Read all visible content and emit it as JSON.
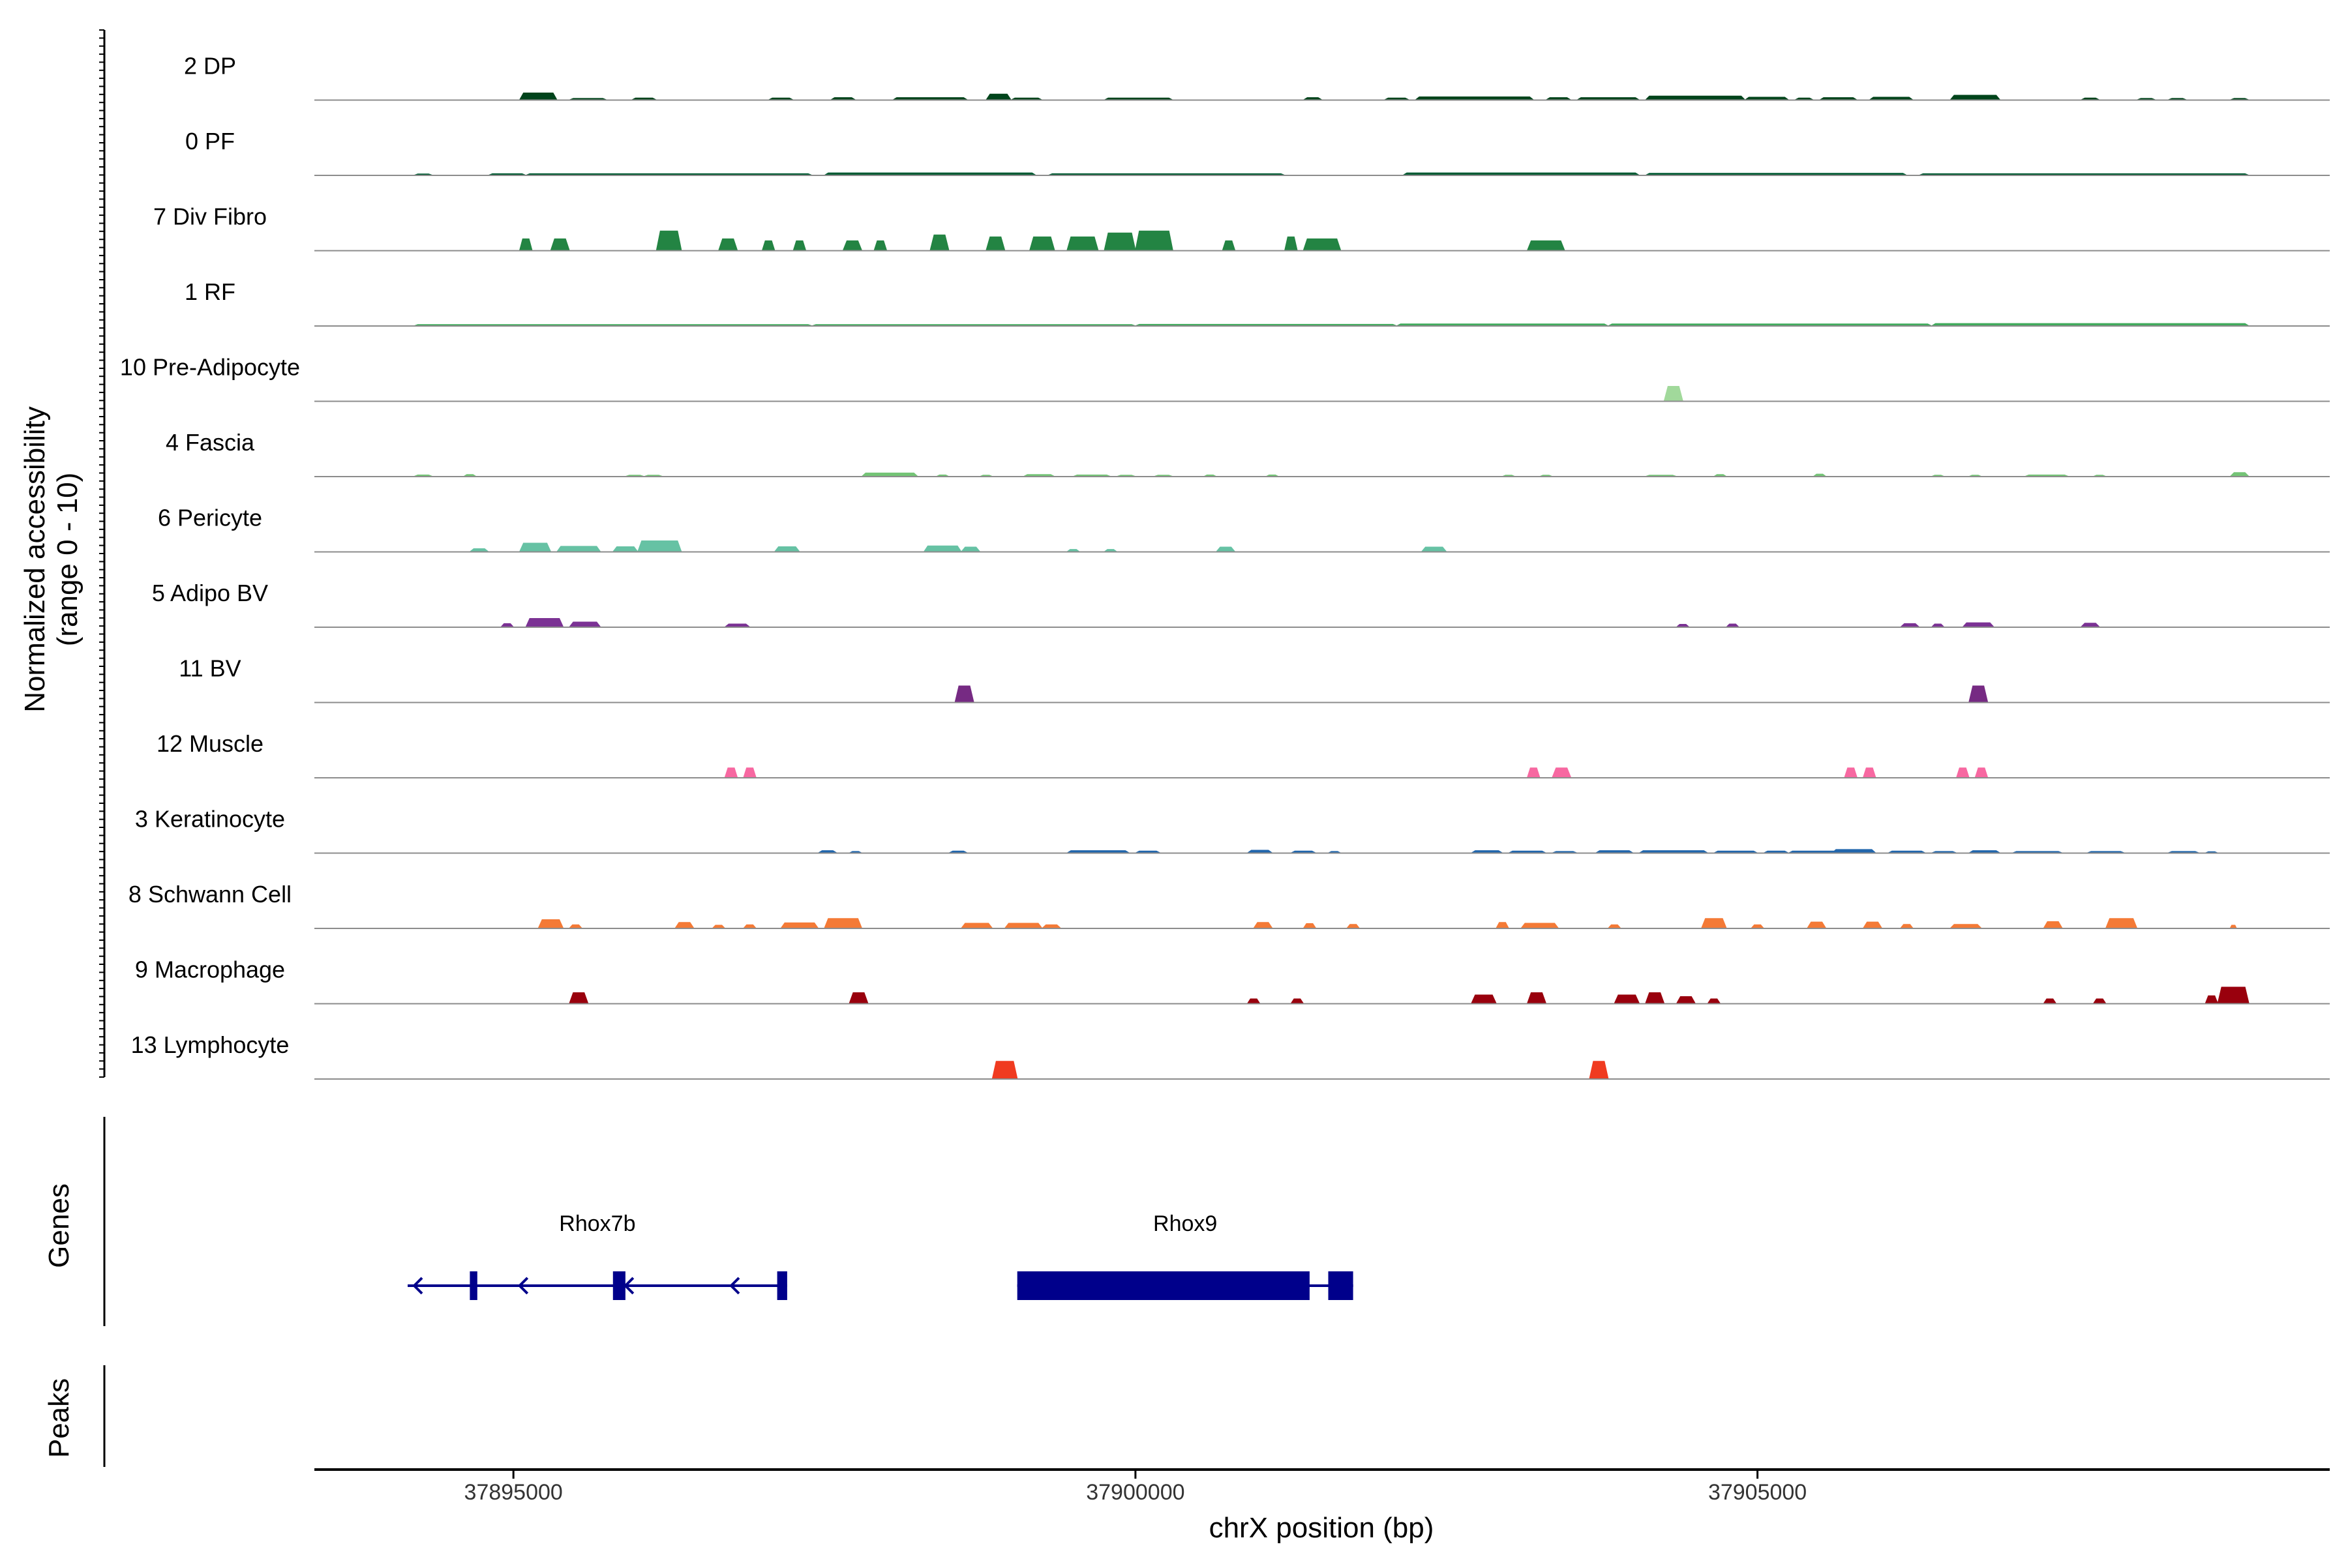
{
  "chart_data": {
    "type": "area",
    "chromosome": "chrX",
    "xlabel": "chrX position (bp)",
    "ylabel_line1": "Normalized accessibility",
    "ylabel_line2": "(range 0 - 10)",
    "xlim": [
      37893400,
      37909600
    ],
    "ylim": [
      0,
      10
    ],
    "x_ticks": [
      37895000,
      37900000,
      37905000
    ],
    "x_tick_labels": [
      "37895000",
      "37900000",
      "37905000"
    ],
    "genes_label": "Genes",
    "peaks_label": "Peaks",
    "series": [
      {
        "name": "2 DP",
        "color": "#00441b",
        "peaks": [
          [
            37895050,
            37895350,
            1.8
          ],
          [
            37895450,
            37895750,
            0.4
          ],
          [
            37895950,
            37896150,
            0.5
          ],
          [
            37897050,
            37897250,
            0.5
          ],
          [
            37897550,
            37897750,
            0.6
          ],
          [
            37898050,
            37898650,
            0.6
          ],
          [
            37898800,
            37899000,
            1.5
          ],
          [
            37899000,
            37899250,
            0.5
          ],
          [
            37899750,
            37900300,
            0.5
          ],
          [
            37901350,
            37901500,
            0.6
          ],
          [
            37902000,
            37902200,
            0.5
          ],
          [
            37902250,
            37903200,
            0.8
          ],
          [
            37903300,
            37903500,
            0.6
          ],
          [
            37903550,
            37904050,
            0.6
          ],
          [
            37904100,
            37904900,
            1.0
          ],
          [
            37904900,
            37905250,
            0.7
          ],
          [
            37905300,
            37905450,
            0.5
          ],
          [
            37905500,
            37905800,
            0.6
          ],
          [
            37905900,
            37906250,
            0.7
          ],
          [
            37906550,
            37906950,
            1.2
          ],
          [
            37907600,
            37907750,
            0.5
          ],
          [
            37908050,
            37908200,
            0.4
          ],
          [
            37908300,
            37908450,
            0.4
          ],
          [
            37908800,
            37908950,
            0.4
          ]
        ]
      },
      {
        "name": "0 PF",
        "color": "#005a32",
        "peaks": [
          [
            37894200,
            37894350,
            0.3
          ],
          [
            37894800,
            37895100,
            0.4
          ],
          [
            37895100,
            37897400,
            0.4
          ],
          [
            37897500,
            37899200,
            0.6
          ],
          [
            37899300,
            37901200,
            0.4
          ],
          [
            37902150,
            37904050,
            0.6
          ],
          [
            37904100,
            37906200,
            0.5
          ],
          [
            37906300,
            37908950,
            0.4
          ]
        ]
      },
      {
        "name": "7 Div Fibro",
        "color": "#238443",
        "peaks": [
          [
            37895050,
            37895150,
            3.0
          ],
          [
            37895300,
            37895450,
            3.0
          ],
          [
            37896150,
            37896350,
            5.0
          ],
          [
            37896650,
            37896800,
            3.0
          ],
          [
            37897000,
            37897100,
            2.5
          ],
          [
            37897250,
            37897350,
            2.5
          ],
          [
            37897650,
            37897800,
            2.5
          ],
          [
            37897900,
            37898000,
            2.5
          ],
          [
            37898350,
            37898500,
            4.0
          ],
          [
            37898800,
            37898950,
            3.5
          ],
          [
            37899150,
            37899350,
            3.5
          ],
          [
            37899450,
            37899700,
            3.5
          ],
          [
            37899750,
            37900000,
            4.5
          ],
          [
            37900000,
            37900300,
            5.0
          ],
          [
            37900700,
            37900800,
            2.5
          ],
          [
            37901200,
            37901300,
            3.5
          ],
          [
            37901350,
            37901650,
            3.0
          ],
          [
            37903150,
            37903450,
            2.5
          ]
        ]
      },
      {
        "name": "1 RF",
        "color": "#41ab5d",
        "peaks": [
          [
            37894200,
            37897400,
            0.3
          ],
          [
            37897400,
            37900000,
            0.3
          ],
          [
            37900000,
            37902100,
            0.4
          ],
          [
            37902100,
            37903800,
            0.5
          ],
          [
            37903800,
            37906400,
            0.5
          ],
          [
            37906400,
            37908950,
            0.6
          ]
        ]
      },
      {
        "name": "10 Pre-Adipocyte",
        "color": "#a1d99b",
        "peaks": [
          [
            37904250,
            37904400,
            3.8
          ]
        ]
      },
      {
        "name": "4 Fascia",
        "color": "#74c476",
        "peaks": [
          [
            37894200,
            37894350,
            0.4
          ],
          [
            37894600,
            37894700,
            0.5
          ],
          [
            37895900,
            37896050,
            0.3
          ],
          [
            37896050,
            37896200,
            0.3
          ],
          [
            37897800,
            37898250,
            0.9
          ],
          [
            37898400,
            37898500,
            0.4
          ],
          [
            37898750,
            37898850,
            0.3
          ],
          [
            37899100,
            37899350,
            0.5
          ],
          [
            37899500,
            37899800,
            0.4
          ],
          [
            37899850,
            37900000,
            0.3
          ],
          [
            37900150,
            37900300,
            0.3
          ],
          [
            37900550,
            37900650,
            0.4
          ],
          [
            37901050,
            37901150,
            0.4
          ],
          [
            37902950,
            37903050,
            0.3
          ],
          [
            37903250,
            37903350,
            0.3
          ],
          [
            37904100,
            37904350,
            0.3
          ],
          [
            37904650,
            37904750,
            0.5
          ],
          [
            37905450,
            37905550,
            0.6
          ],
          [
            37906400,
            37906500,
            0.3
          ],
          [
            37906700,
            37906800,
            0.3
          ],
          [
            37907150,
            37907500,
            0.4
          ],
          [
            37907700,
            37907800,
            0.3
          ],
          [
            37908800,
            37908950,
            1.0
          ]
        ]
      },
      {
        "name": "6 Pericyte",
        "color": "#66c2a4",
        "peaks": [
          [
            37894650,
            37894800,
            0.8
          ],
          [
            37895050,
            37895300,
            2.2
          ],
          [
            37895350,
            37895700,
            1.4
          ],
          [
            37895800,
            37896000,
            1.3
          ],
          [
            37896000,
            37896350,
            2.8
          ],
          [
            37897100,
            37897300,
            1.3
          ],
          [
            37898300,
            37898600,
            1.5
          ],
          [
            37898600,
            37898750,
            1.2
          ],
          [
            37899450,
            37899550,
            0.6
          ],
          [
            37899750,
            37899850,
            0.6
          ],
          [
            37900650,
            37900800,
            1.2
          ],
          [
            37902300,
            37902500,
            1.2
          ]
        ]
      },
      {
        "name": "5 Adipo BV",
        "color": "#7b3294",
        "peaks": [
          [
            37894900,
            37895000,
            0.9
          ],
          [
            37895100,
            37895400,
            2.2
          ],
          [
            37895450,
            37895700,
            1.3
          ],
          [
            37896700,
            37896900,
            0.8
          ],
          [
            37904350,
            37904450,
            0.7
          ],
          [
            37904750,
            37904850,
            0.8
          ],
          [
            37906150,
            37906300,
            0.9
          ],
          [
            37906400,
            37906500,
            0.8
          ],
          [
            37906650,
            37906900,
            1.1
          ],
          [
            37907600,
            37907750,
            1.0
          ]
        ]
      },
      {
        "name": "11 BV",
        "color": "#762a83",
        "peaks": [
          [
            37898550,
            37898700,
            4.2
          ],
          [
            37906700,
            37906850,
            4.2
          ]
        ]
      },
      {
        "name": "12 Muscle",
        "color": "#f768a1",
        "peaks": [
          [
            37896700,
            37896800,
            2.5
          ],
          [
            37896850,
            37896950,
            2.5
          ],
          [
            37903150,
            37903250,
            2.5
          ],
          [
            37903350,
            37903500,
            2.5
          ],
          [
            37905700,
            37905800,
            2.5
          ],
          [
            37905850,
            37905950,
            2.5
          ],
          [
            37906600,
            37906700,
            2.5
          ],
          [
            37906750,
            37906850,
            2.5
          ]
        ]
      },
      {
        "name": "3 Keratinocyte",
        "color": "#2166ac",
        "peaks": [
          [
            37897450,
            37897600,
            0.6
          ],
          [
            37897700,
            37897800,
            0.4
          ],
          [
            37898500,
            37898650,
            0.5
          ],
          [
            37899450,
            37899950,
            0.6
          ],
          [
            37900000,
            37900200,
            0.5
          ],
          [
            37900900,
            37901100,
            0.7
          ],
          [
            37901250,
            37901450,
            0.5
          ],
          [
            37901550,
            37901650,
            0.4
          ],
          [
            37902700,
            37902950,
            0.6
          ],
          [
            37903000,
            37903300,
            0.5
          ],
          [
            37903350,
            37903550,
            0.4
          ],
          [
            37903700,
            37904000,
            0.6
          ],
          [
            37904050,
            37904600,
            0.6
          ],
          [
            37904650,
            37905000,
            0.5
          ],
          [
            37905050,
            37905250,
            0.5
          ],
          [
            37905250,
            37905650,
            0.5
          ],
          [
            37905600,
            37905950,
            0.9
          ],
          [
            37906050,
            37906350,
            0.5
          ],
          [
            37906400,
            37906600,
            0.4
          ],
          [
            37906700,
            37906950,
            0.6
          ],
          [
            37907050,
            37907450,
            0.4
          ],
          [
            37907650,
            37907950,
            0.4
          ],
          [
            37908300,
            37908550,
            0.4
          ],
          [
            37908600,
            37908700,
            0.3
          ]
        ]
      },
      {
        "name": "8 Schwann Cell",
        "color": "#f47a36",
        "peaks": [
          [
            37895200,
            37895400,
            2.2
          ],
          [
            37895450,
            37895550,
            0.9
          ],
          [
            37896300,
            37896450,
            1.5
          ],
          [
            37896600,
            37896700,
            0.8
          ],
          [
            37896850,
            37896950,
            0.9
          ],
          [
            37897150,
            37897450,
            1.4
          ],
          [
            37897500,
            37897800,
            2.5
          ],
          [
            37898600,
            37898850,
            1.3
          ],
          [
            37898950,
            37899250,
            1.3
          ],
          [
            37899250,
            37899400,
            0.9
          ],
          [
            37900950,
            37901100,
            1.5
          ],
          [
            37901350,
            37901450,
            1.2
          ],
          [
            37901700,
            37901800,
            1.0
          ],
          [
            37902900,
            37903000,
            1.5
          ],
          [
            37903100,
            37903400,
            1.3
          ],
          [
            37903800,
            37903900,
            0.9
          ],
          [
            37904550,
            37904750,
            2.5
          ],
          [
            37904950,
            37905050,
            0.9
          ],
          [
            37905400,
            37905550,
            1.6
          ],
          [
            37905850,
            37906000,
            1.6
          ],
          [
            37906150,
            37906250,
            1.0
          ],
          [
            37906550,
            37906800,
            1.0
          ],
          [
            37907300,
            37907450,
            1.7
          ],
          [
            37907800,
            37908050,
            2.5
          ],
          [
            37908800,
            37908850,
            0.8
          ]
        ]
      },
      {
        "name": "9 Macrophage",
        "color": "#99000d",
        "peaks": [
          [
            37895450,
            37895600,
            2.8
          ],
          [
            37897700,
            37897850,
            2.8
          ],
          [
            37900900,
            37901000,
            1.2
          ],
          [
            37901250,
            37901350,
            1.2
          ],
          [
            37902700,
            37902900,
            2.2
          ],
          [
            37903150,
            37903300,
            2.8
          ],
          [
            37903850,
            37904050,
            2.2
          ],
          [
            37904100,
            37904250,
            2.8
          ],
          [
            37904350,
            37904500,
            1.8
          ],
          [
            37904600,
            37904700,
            1.2
          ],
          [
            37907300,
            37907400,
            1.2
          ],
          [
            37907700,
            37907800,
            1.2
          ],
          [
            37908600,
            37908700,
            2.0
          ],
          [
            37908700,
            37908950,
            4.2
          ]
        ]
      },
      {
        "name": "13 Lymphocyte",
        "color": "#f03b20",
        "peaks": [
          [
            37898850,
            37899050,
            4.5
          ],
          [
            37903650,
            37903800,
            4.5
          ]
        ]
      }
    ],
    "genes": [
      {
        "name": "Rhox7b",
        "strand": "-",
        "start": 37894150,
        "end": 37897200,
        "exons": [
          [
            37894650,
            37894710
          ],
          [
            37895800,
            37895900
          ],
          [
            37897120,
            37897200
          ]
        ]
      },
      {
        "name": "Rhox9",
        "strand": "+",
        "start": 37899050,
        "end": 37901750,
        "exons": [
          [
            37899050,
            37901400
          ],
          [
            37901550,
            37901750
          ]
        ]
      }
    ]
  }
}
